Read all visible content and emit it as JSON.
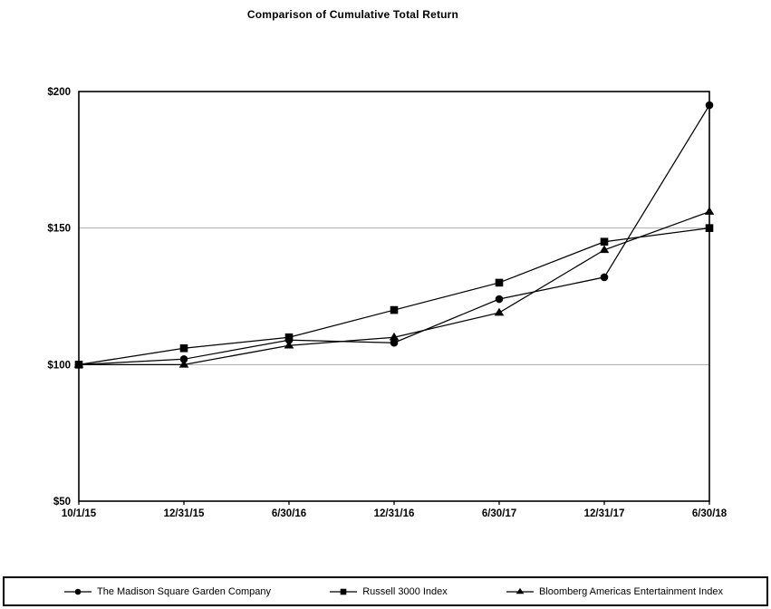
{
  "title": "Comparison of Cumulative Total Return",
  "chart_data": {
    "type": "line",
    "categories": [
      "10/1/15",
      "12/31/15",
      "6/30/16",
      "12/31/16",
      "6/30/17",
      "12/31/17",
      "6/30/18"
    ],
    "series": [
      {
        "name": "The Madison Square Garden Company",
        "marker": "circle",
        "values": [
          100,
          102,
          109,
          108,
          124,
          132,
          195
        ]
      },
      {
        "name": "Russell 3000 Index",
        "marker": "square",
        "values": [
          100,
          106,
          110,
          120,
          130,
          145,
          150
        ]
      },
      {
        "name": "Bloomberg Americas Entertainment Index",
        "marker": "triangle",
        "values": [
          100,
          100,
          107,
          110,
          119,
          142,
          156
        ]
      }
    ],
    "ylim": [
      50,
      200
    ],
    "yticks": [
      50,
      100,
      150,
      200
    ],
    "ytick_labels": [
      "$50",
      "$100",
      "$150",
      "$200"
    ],
    "xlabel": "",
    "ylabel": "",
    "grid": "horizontal-interior",
    "legend_position": "bottom",
    "colors": {
      "series": "#000000",
      "grid": "#a8a8a8",
      "axis": "#000000",
      "background": "#ffffff"
    }
  }
}
